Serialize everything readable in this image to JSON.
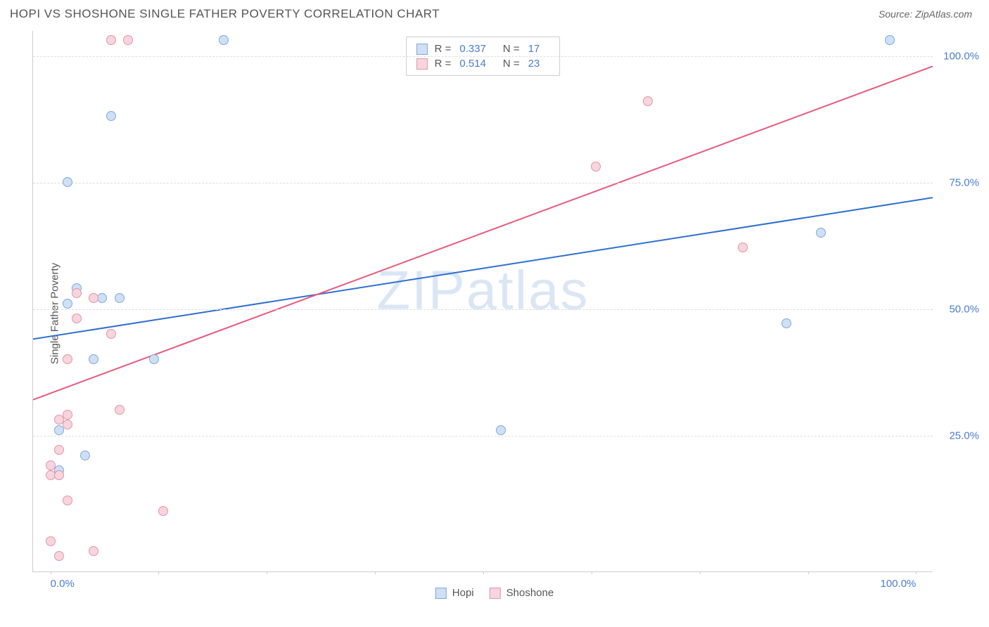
{
  "title": "HOPI VS SHOSHONE SINGLE FATHER POVERTY CORRELATION CHART",
  "source_prefix": "Source: ",
  "source_name": "ZipAtlas.com",
  "ylabel": "Single Father Poverty",
  "watermark": "ZIPatlas",
  "chart": {
    "type": "scatter",
    "background_color": "#ffffff",
    "grid_color": "#dddddd",
    "axis_color": "#cccccc",
    "tick_label_color": "#4a7bd0",
    "xlim": [
      -2,
      102
    ],
    "ylim": [
      -2,
      105
    ],
    "yticks": [
      25,
      50,
      75,
      100
    ],
    "ytick_labels": [
      "25.0%",
      "50.0%",
      "75.0%",
      "100.0%"
    ],
    "xticks_major": [
      0,
      100
    ],
    "xtick_labels": [
      "0.0%",
      "100.0%"
    ],
    "xticks_minor": [
      0,
      12.5,
      25,
      37.5,
      50,
      62.5,
      75,
      87.5,
      100
    ],
    "marker_size": 14,
    "series": [
      {
        "name": "Hopi",
        "fill": "#cfe0f4",
        "stroke": "#7fa8d9",
        "line_color": "#2f6fd0",
        "line_width": 2,
        "r_value": "0.337",
        "n_value": "17",
        "points": [
          {
            "x": 20,
            "y": 103
          },
          {
            "x": 97,
            "y": 103
          },
          {
            "x": 7,
            "y": 88
          },
          {
            "x": 2,
            "y": 75
          },
          {
            "x": 89,
            "y": 65
          },
          {
            "x": 3,
            "y": 54
          },
          {
            "x": 6,
            "y": 52
          },
          {
            "x": 8,
            "y": 52
          },
          {
            "x": 2,
            "y": 51
          },
          {
            "x": 85,
            "y": 47
          },
          {
            "x": 5,
            "y": 40
          },
          {
            "x": 12,
            "y": 40
          },
          {
            "x": 1,
            "y": 26
          },
          {
            "x": 52,
            "y": 26
          },
          {
            "x": 4,
            "y": 21
          },
          {
            "x": 1,
            "y": 18
          },
          {
            "x": 1,
            "y": 17
          }
        ],
        "trend": {
          "x1": -2,
          "y1": 44,
          "x2": 102,
          "y2": 72
        }
      },
      {
        "name": "Shoshone",
        "fill": "#f7d5de",
        "stroke": "#e493a9",
        "line_color": "#e65a7d",
        "line_width": 2,
        "r_value": "0.514",
        "n_value": "23",
        "points": [
          {
            "x": 7,
            "y": 103
          },
          {
            "x": 9,
            "y": 103
          },
          {
            "x": 69,
            "y": 91
          },
          {
            "x": 63,
            "y": 78
          },
          {
            "x": 80,
            "y": 62
          },
          {
            "x": 3,
            "y": 53
          },
          {
            "x": 5,
            "y": 52
          },
          {
            "x": 3,
            "y": 48
          },
          {
            "x": 7,
            "y": 45
          },
          {
            "x": 2,
            "y": 40
          },
          {
            "x": 8,
            "y": 30
          },
          {
            "x": 2,
            "y": 29
          },
          {
            "x": 1,
            "y": 28
          },
          {
            "x": 2,
            "y": 27
          },
          {
            "x": 1,
            "y": 22
          },
          {
            "x": 0,
            "y": 19
          },
          {
            "x": 0,
            "y": 17
          },
          {
            "x": 1,
            "y": 17
          },
          {
            "x": 2,
            "y": 12
          },
          {
            "x": 13,
            "y": 10
          },
          {
            "x": 0,
            "y": 4
          },
          {
            "x": 5,
            "y": 2
          },
          {
            "x": 1,
            "y": 1
          }
        ],
        "trend": {
          "x1": -2,
          "y1": 32,
          "x2": 102,
          "y2": 98
        }
      }
    ]
  },
  "legend_top": {
    "r_label": "R =",
    "n_label": "N ="
  },
  "legend_bottom": [
    {
      "label": "Hopi",
      "fill": "#cfe0f4",
      "stroke": "#7fa8d9"
    },
    {
      "label": "Shoshone",
      "fill": "#f7d5de",
      "stroke": "#e493a9"
    }
  ]
}
